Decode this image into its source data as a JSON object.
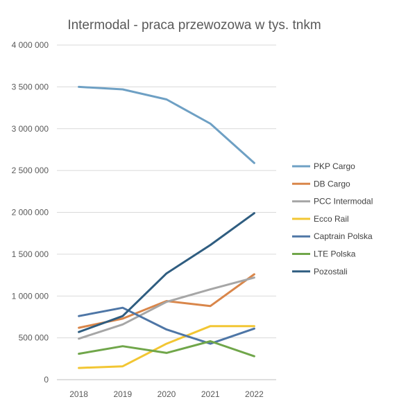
{
  "chart_data": {
    "type": "line",
    "title": "Intermodal - praca przewozowa w tys. tnkm",
    "xlabel": "",
    "ylabel": "",
    "categories": [
      "2018",
      "2019",
      "2020",
      "2021",
      "2022"
    ],
    "ylim": [
      0,
      4000000
    ],
    "yticks": [
      0,
      500000,
      1000000,
      1500000,
      2000000,
      2500000,
      3000000,
      3500000,
      4000000
    ],
    "ytick_labels": [
      "0",
      "500 000",
      "1 000 000",
      "1 500 000",
      "2 000 000",
      "2 500 000",
      "3 000 000",
      "3 500 000",
      "4 000 000"
    ],
    "grid": true,
    "legend_position": "right",
    "series": [
      {
        "name": "PKP Cargo",
        "color": "#6ea0c4",
        "values": [
          3500000,
          3470000,
          3350000,
          3060000,
          2590000
        ]
      },
      {
        "name": "DB Cargo",
        "color": "#d9864a",
        "values": [
          620000,
          730000,
          940000,
          880000,
          1260000
        ]
      },
      {
        "name": "PCC Intermodal",
        "color": "#a6a6a6",
        "values": [
          490000,
          660000,
          930000,
          1080000,
          1220000
        ]
      },
      {
        "name": "Ecco Rail",
        "color": "#f2c633",
        "values": [
          140000,
          160000,
          430000,
          640000,
          640000
        ]
      },
      {
        "name": "Captrain Polska",
        "color": "#4e76a6",
        "values": [
          760000,
          860000,
          600000,
          430000,
          610000
        ]
      },
      {
        "name": "LTE Polska",
        "color": "#70a64a",
        "values": [
          310000,
          400000,
          320000,
          460000,
          280000
        ]
      },
      {
        "name": "Pozostali",
        "color": "#2f5d80",
        "values": [
          570000,
          760000,
          1270000,
          1610000,
          1990000
        ]
      }
    ]
  }
}
